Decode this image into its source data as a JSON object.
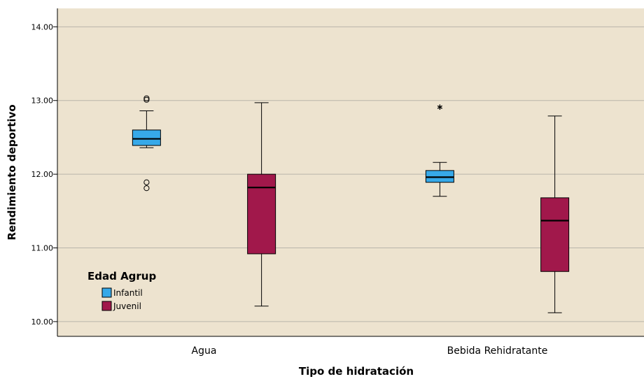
{
  "chart_data": {
    "type": "boxplot",
    "xlabel": "Tipo de hidratación",
    "ylabel": "Rendimiento deportivo",
    "ylim": [
      9.8,
      14.25
    ],
    "yticks": [
      "10.00",
      "11.00",
      "12.00",
      "13.00",
      "14.00"
    ],
    "ytick_values": [
      10,
      11,
      12,
      13,
      14
    ],
    "grid": true,
    "categories": [
      "Agua",
      "Bebida Rehidratante"
    ],
    "legend": {
      "title": "Edad Agrup",
      "placement": "bottom-left",
      "entries": [
        "Infantil",
        "Juvenil"
      ]
    },
    "series": [
      {
        "name": "Infantil",
        "color": "#37a9e9",
        "boxes": [
          {
            "min": 12.36,
            "q1": 12.39,
            "median": 12.48,
            "q3": 12.6,
            "max": 12.86,
            "outliers": [
              13.01,
              13.03,
              11.89,
              11.81
            ],
            "extremes": []
          },
          {
            "min": 11.7,
            "q1": 11.89,
            "median": 11.96,
            "q3": 12.05,
            "max": 12.16,
            "outliers": [],
            "extremes": [
              12.91
            ]
          }
        ]
      },
      {
        "name": "Juvenil",
        "color": "#a1184b",
        "boxes": [
          {
            "min": 10.21,
            "q1": 10.92,
            "median": 11.82,
            "q3": 12.0,
            "max": 12.97,
            "outliers": [],
            "extremes": []
          },
          {
            "min": 10.12,
            "q1": 10.68,
            "median": 11.37,
            "q3": 11.68,
            "max": 12.79,
            "outliers": [],
            "extremes": []
          }
        ]
      }
    ]
  },
  "colors": {
    "plot_background": "#ede3cf",
    "grid": "#b9b4aa"
  }
}
